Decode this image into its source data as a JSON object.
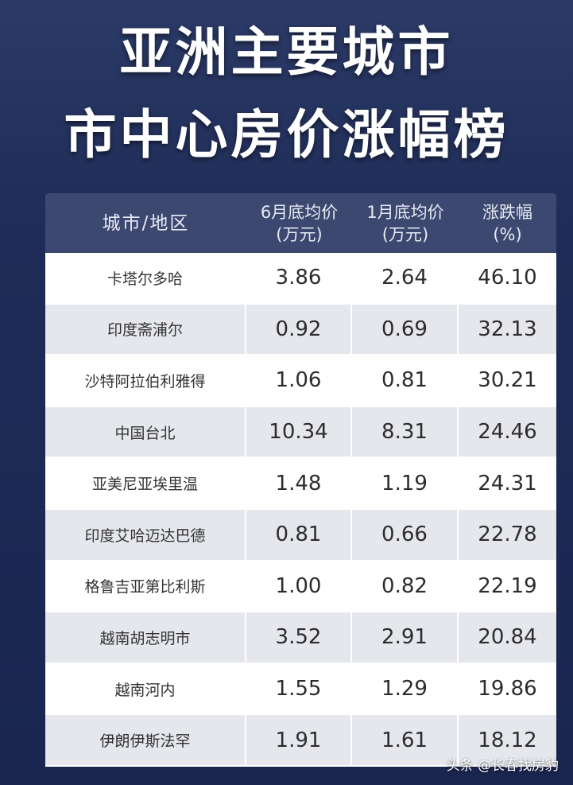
{
  "title": [
    "亚洲主要城市",
    "市中心房价涨幅榜"
  ],
  "table": {
    "header": [
      [
        "城市/地区"
      ],
      [
        "6月底均价",
        "(万元)"
      ],
      [
        "1月底均价",
        "(万元)"
      ],
      [
        "涨跌幅",
        "(%)"
      ]
    ],
    "rows": [
      [
        "卡塔尔多哈",
        "3.86",
        "2.64",
        "46.10"
      ],
      [
        "印度斋浦尔",
        "0.92",
        "0.69",
        "32.13"
      ],
      [
        "沙特阿拉伯利雅得",
        "1.06",
        "0.81",
        "30.21"
      ],
      [
        "中国台北",
        "10.34",
        "8.31",
        "24.46"
      ],
      [
        "亚美尼亚埃里温",
        "1.48",
        "1.19",
        "24.31"
      ],
      [
        "印度艾哈迈达巴德",
        "0.81",
        "0.66",
        "22.78"
      ],
      [
        "格鲁吉亚第比利斯",
        "1.00",
        "0.82",
        "22.19"
      ],
      [
        "越南胡志明市",
        "3.52",
        "2.91",
        "20.84"
      ],
      [
        "越南河内",
        "1.55",
        "1.29",
        "19.86"
      ],
      [
        "伊朗伊斯法罕",
        "1.91",
        "1.61",
        "18.12"
      ]
    ]
  },
  "watermark": "头条 @长春找房豹"
}
